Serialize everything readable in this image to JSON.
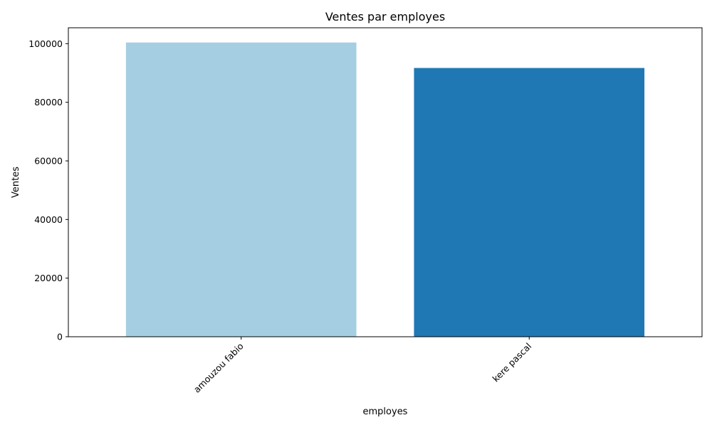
{
  "chart_data": {
    "type": "bar",
    "title": "Ventes par employes",
    "xlabel": "employes",
    "ylabel": "Ventes",
    "categories": [
      "amouzou fabio",
      "kere pascal"
    ],
    "values": [
      100400,
      91700
    ],
    "colors": [
      "#a6cee3",
      "#1f78b4"
    ],
    "ylim": [
      0,
      105420
    ],
    "yticks": [
      0,
      20000,
      40000,
      60000,
      80000,
      100000
    ],
    "ytick_labels": [
      "0",
      "20000",
      "40000",
      "60000",
      "80000",
      "100000"
    ],
    "xtick_rotation_deg": 45,
    "grid": false,
    "legend": "none"
  }
}
